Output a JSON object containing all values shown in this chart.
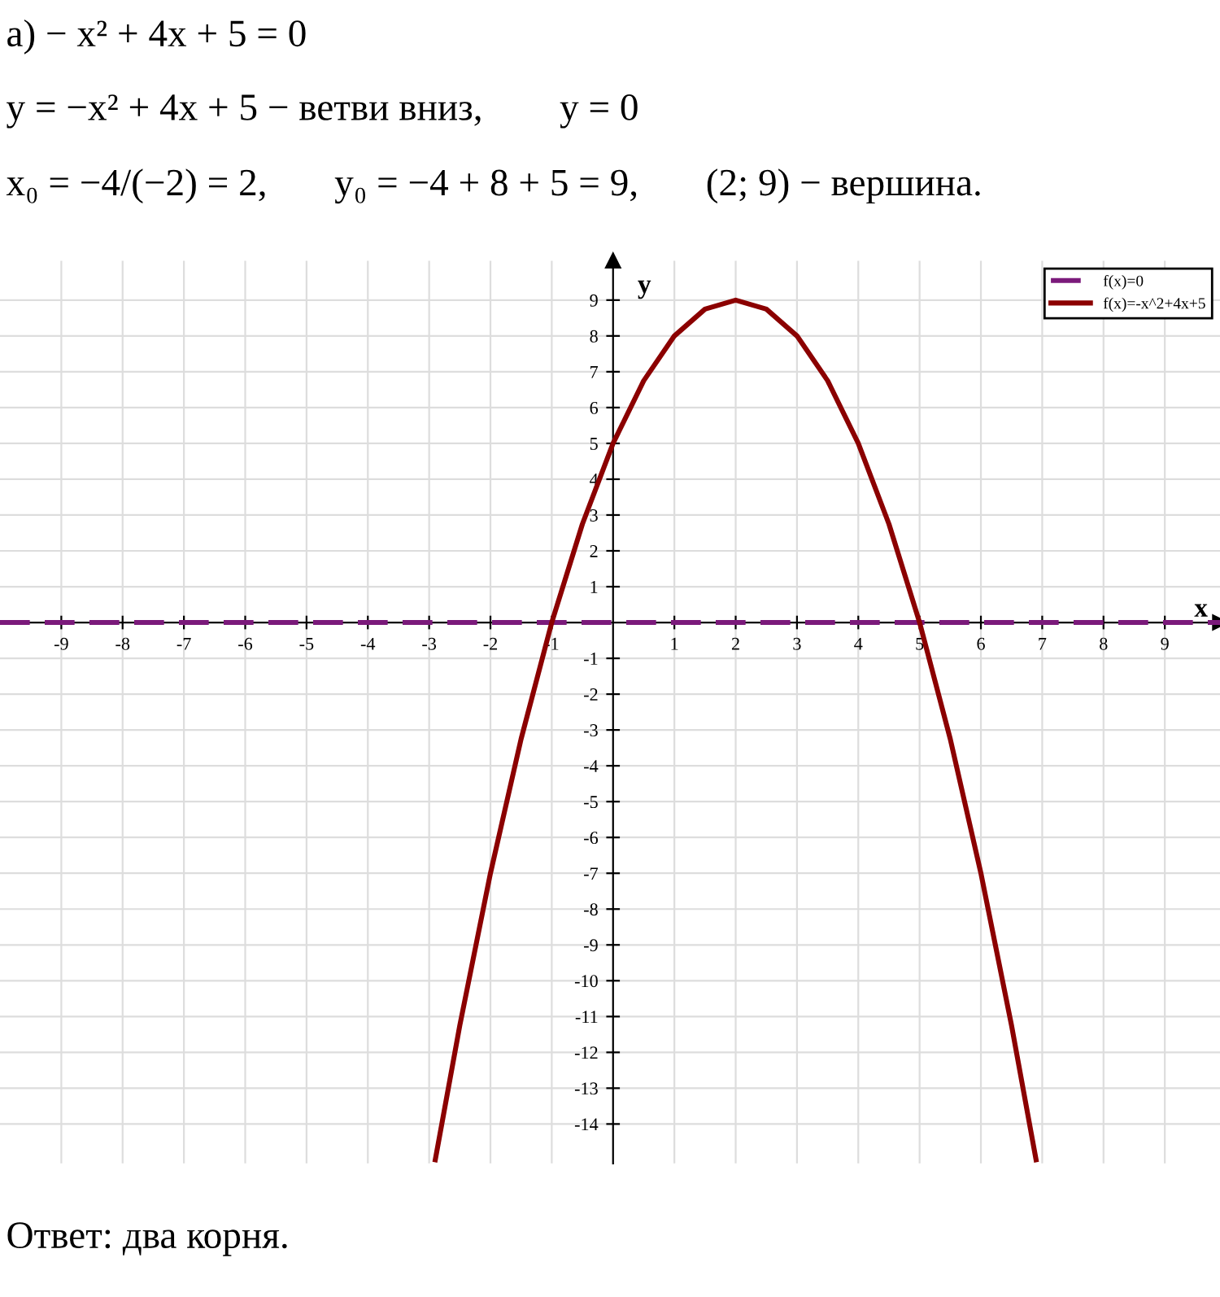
{
  "chart_data": {
    "type": "line",
    "title": "а) − x² + 4x + 5 = 0",
    "subtitle": "y = −x² + 4x + 5 − ветви вниз,        y = 0",
    "annotations": [
      "x₀ = −4/(−2) = 2,       y₀ = −4 + 8 + 5 = 9,       (2; 9) − вершина.",
      "Ответ: два корня."
    ],
    "xlabel": "x",
    "ylabel": "y",
    "series": [
      {
        "name": "f(x)=0",
        "color": "#7b1a7b",
        "line_style": "dashed",
        "x": [
          -10,
          9.9
        ],
        "values": [
          0,
          0
        ]
      },
      {
        "name": "f(x)=-x^2+4x+5",
        "color": "#8b0000",
        "line_style": "solid",
        "x": [
          -2.9,
          -2.5,
          -2,
          -1.5,
          -1,
          -0.5,
          0,
          0.5,
          1,
          1.5,
          2,
          2.5,
          3,
          3.5,
          4,
          4.5,
          5,
          5.5,
          6,
          6.5,
          6.9
        ],
        "values": [
          -15,
          -11.25,
          -7,
          -3.25,
          0,
          2.75,
          5,
          6.75,
          8,
          8.75,
          9,
          8.75,
          8,
          6.75,
          5,
          2.75,
          0,
          -3.25,
          -7,
          -11.25,
          -15
        ]
      }
    ],
    "xlim": [
      -10,
      9.9
    ],
    "ylim": [
      -15.1,
      10.1
    ],
    "xticks": [
      -9,
      -8,
      -7,
      -6,
      -5,
      -4,
      -3,
      -2,
      -1,
      1,
      2,
      3,
      4,
      5,
      6,
      7,
      8,
      9
    ],
    "yticks": [
      -14,
      -13,
      -12,
      -11,
      -10,
      -9,
      -8,
      -7,
      -6,
      -5,
      -4,
      -3,
      -2,
      -1,
      1,
      2,
      3,
      4,
      5,
      6,
      7,
      8,
      9
    ],
    "grid": true,
    "legend": "top right",
    "marker": "none"
  }
}
